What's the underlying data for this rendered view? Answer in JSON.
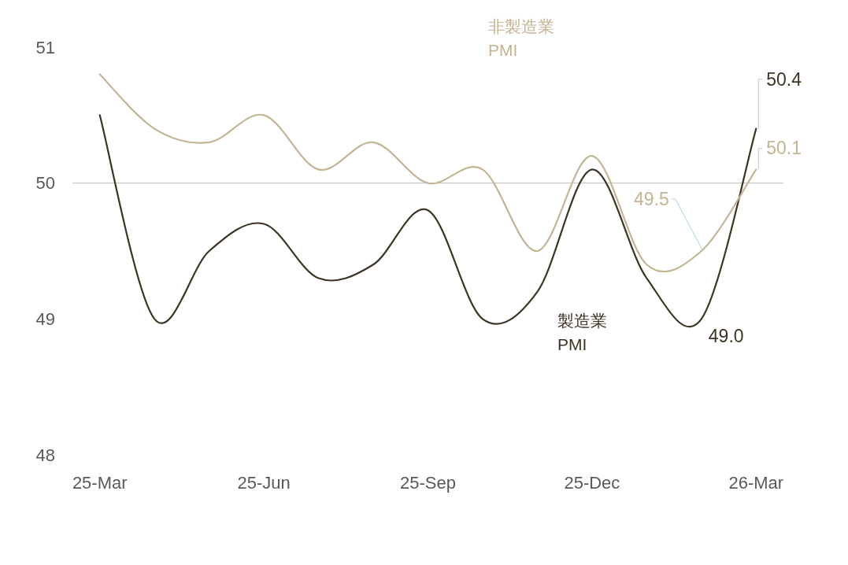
{
  "chart_data": {
    "type": "line",
    "categories": [
      "25-Mar",
      null,
      null,
      "25-Jun",
      null,
      null,
      "25-Sep",
      null,
      null,
      "25-Dec",
      null,
      null,
      "26-Mar"
    ],
    "series": [
      {
        "name": "製造業 PMI",
        "color": "#3d3424",
        "values": [
          50.5,
          49.0,
          49.5,
          49.7,
          49.3,
          49.4,
          49.8,
          49.0,
          49.2,
          50.1,
          49.3,
          49.0,
          50.4
        ],
        "value_labels": [
          null,
          null,
          null,
          null,
          null,
          null,
          null,
          null,
          null,
          null,
          null,
          "49.0",
          "50.4"
        ]
      },
      {
        "name": "非製造業 PMI",
        "color": "#c3b493",
        "values": [
          50.8,
          50.4,
          50.3,
          50.5,
          50.1,
          50.3,
          50.0,
          50.1,
          49.5,
          50.2,
          49.4,
          49.5,
          50.1
        ],
        "value_labels": [
          null,
          null,
          null,
          null,
          null,
          null,
          null,
          null,
          null,
          null,
          null,
          "49.5",
          "50.1"
        ]
      }
    ],
    "ylim": [
      48,
      51
    ],
    "yticks": [
      48,
      49,
      50,
      51
    ],
    "ref_lines": [
      {
        "axis": "y",
        "value": 50,
        "color": "#bfbfbf"
      }
    ],
    "marker": "none",
    "line_style": "solid"
  }
}
